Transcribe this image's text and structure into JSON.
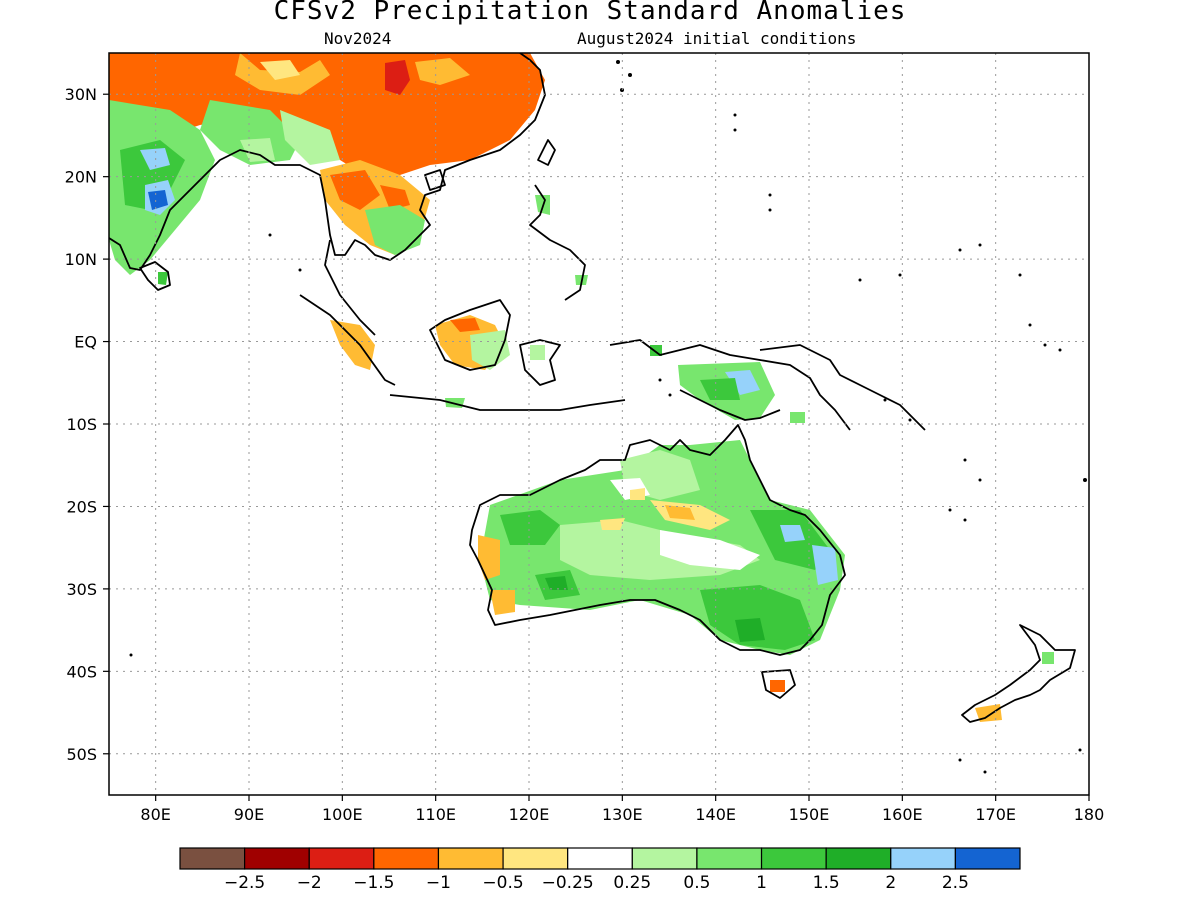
{
  "title": "CFSv2 Precipitation Standard Anomalies",
  "subtitle_left": "Nov2024",
  "subtitle_right": "August2024 initial conditions",
  "map": {
    "lon_range": [
      75,
      180
    ],
    "lat_range": [
      -55,
      35
    ],
    "lat_ticks": [
      {
        "value": 30,
        "label": "30N"
      },
      {
        "value": 20,
        "label": "20N"
      },
      {
        "value": 10,
        "label": "10N"
      },
      {
        "value": 0,
        "label": "EQ"
      },
      {
        "value": -10,
        "label": "10S"
      },
      {
        "value": -20,
        "label": "20S"
      },
      {
        "value": -30,
        "label": "30S"
      },
      {
        "value": -40,
        "label": "40S"
      },
      {
        "value": -50,
        "label": "50S"
      }
    ],
    "lon_ticks": [
      {
        "value": 80,
        "label": "80E"
      },
      {
        "value": 90,
        "label": "90E"
      },
      {
        "value": 100,
        "label": "100E"
      },
      {
        "value": 110,
        "label": "110E"
      },
      {
        "value": 120,
        "label": "120E"
      },
      {
        "value": 130,
        "label": "130E"
      },
      {
        "value": 140,
        "label": "140E"
      },
      {
        "value": 150,
        "label": "150E"
      },
      {
        "value": 160,
        "label": "160E"
      },
      {
        "value": 170,
        "label": "170E"
      },
      {
        "value": 180,
        "label": "180"
      }
    ]
  },
  "colorbar": {
    "colors": [
      "#7a5040",
      "#a00000",
      "#dc1e14",
      "#ff6600",
      "#ffbb33",
      "#ffe680",
      "#ffffff",
      "#b4f5a0",
      "#78e66e",
      "#3cc83c",
      "#1fae28",
      "#96d2fa",
      "#1464d2"
    ],
    "labels": [
      "−2.5",
      "−2",
      "−1.5",
      "−1",
      "−0.5",
      "−0.25",
      "0.25",
      "0.5",
      "1",
      "1.5",
      "2",
      "2.5"
    ]
  }
}
